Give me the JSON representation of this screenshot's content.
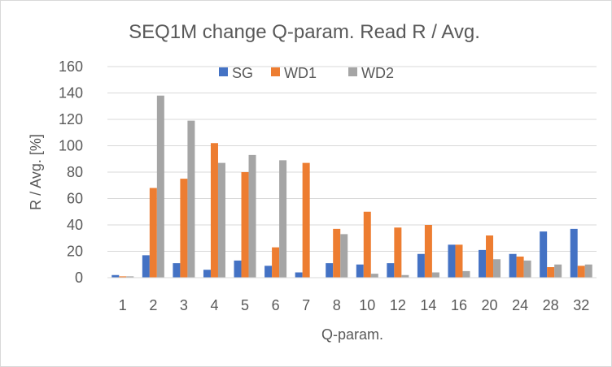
{
  "chart_data": {
    "type": "bar",
    "title": "SEQ1M change Q-param. Read R / Avg.",
    "xlabel": "Q-param.",
    "ylabel": "R / Avg. [%]",
    "ylim": [
      0,
      160
    ],
    "yticks": [
      0,
      20,
      40,
      60,
      80,
      100,
      120,
      140,
      160
    ],
    "grid": true,
    "legend_position": "top",
    "categories": [
      "1",
      "2",
      "3",
      "4",
      "5",
      "6",
      "7",
      "8",
      "10",
      "12",
      "14",
      "16",
      "20",
      "24",
      "28",
      "32"
    ],
    "series": [
      {
        "name": "SG",
        "color": "#4472C4",
        "values": [
          2,
          17,
          11,
          6,
          13,
          9,
          4,
          11,
          10,
          11,
          18,
          25,
          21,
          18,
          35,
          37
        ]
      },
      {
        "name": "WD1",
        "color": "#ED7D31",
        "values": [
          1,
          68,
          75,
          102,
          80,
          23,
          87,
          37,
          50,
          38,
          40,
          25,
          32,
          16,
          8,
          9
        ]
      },
      {
        "name": "WD2",
        "color": "#A5A5A5",
        "values": [
          1,
          138,
          119,
          87,
          93,
          89,
          0,
          33,
          3,
          2,
          4,
          5,
          14,
          13,
          10,
          10
        ]
      }
    ]
  }
}
